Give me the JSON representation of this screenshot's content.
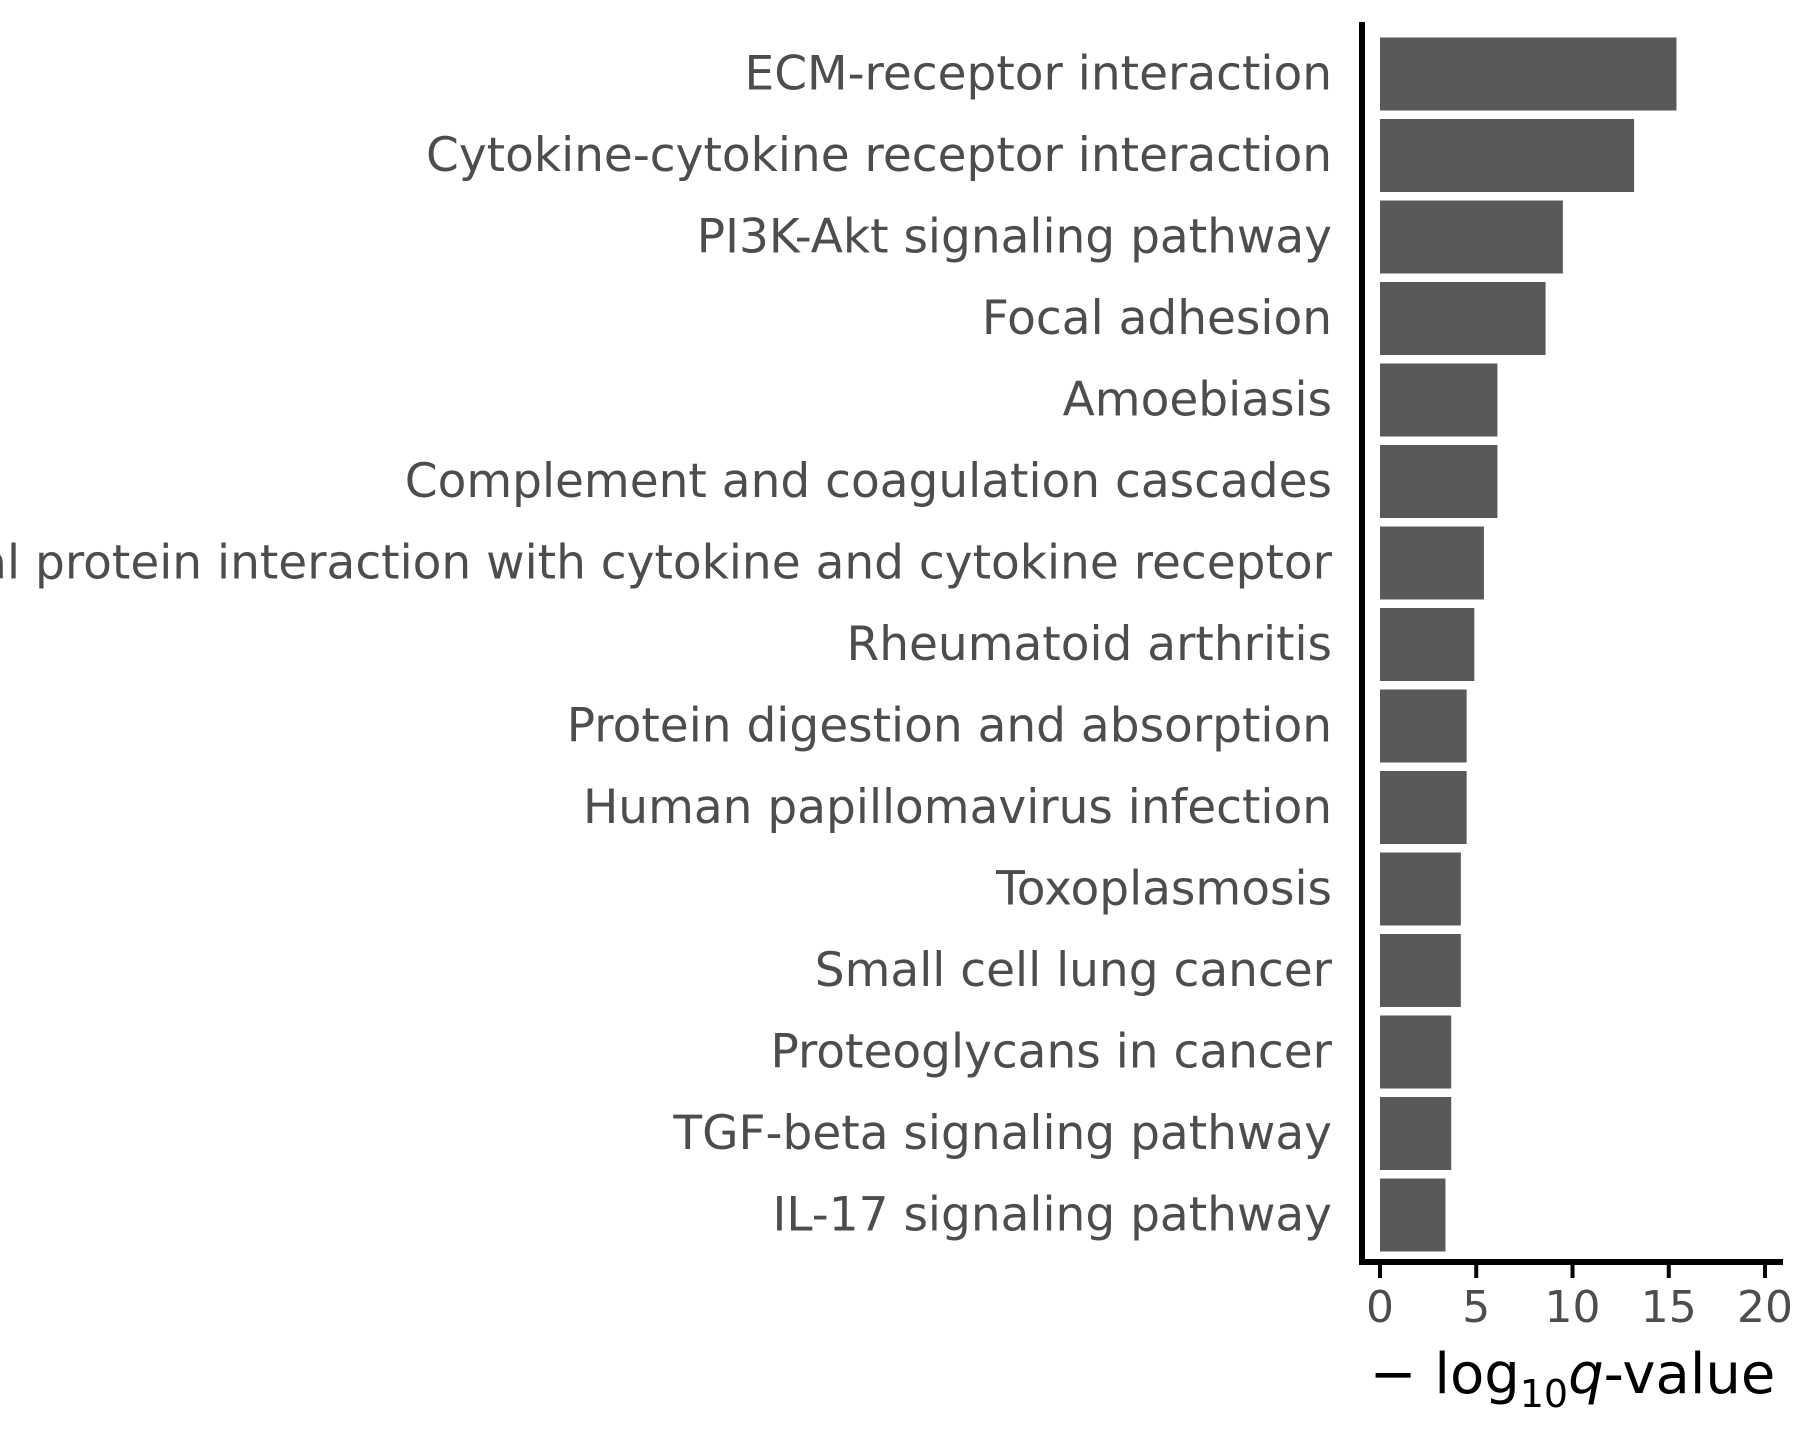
{
  "chart_data": {
    "type": "bar",
    "orientation": "horizontal",
    "categories": [
      "ECM-receptor interaction",
      "Cytokine-cytokine receptor interaction",
      "PI3K-Akt signaling pathway",
      "Focal adhesion",
      "Amoebiasis",
      "Complement and coagulation cascades",
      "Viral protein interaction with cytokine and cytokine receptor",
      "Rheumatoid arthritis",
      "Protein digestion and absorption",
      "Human papillomavirus infection",
      "Toxoplasmosis",
      "Small cell lung cancer",
      "Proteoglycans in cancer",
      "TGF-beta signaling pathway",
      "IL-17 signaling pathway"
    ],
    "values": [
      15.4,
      13.2,
      9.5,
      8.6,
      6.1,
      6.1,
      5.4,
      4.9,
      4.5,
      4.5,
      4.2,
      4.2,
      3.7,
      3.7,
      3.4
    ],
    "xlim": [
      0,
      20
    ],
    "xticks": [
      0,
      5,
      10,
      15,
      20
    ],
    "xtick_labels": [
      "0",
      "5",
      "10",
      "15",
      "20"
    ],
    "xlabel": {
      "prefix": "− log",
      "subscript": "10",
      "variable": "q",
      "suffix": "-value"
    },
    "ylabel": "",
    "title": "",
    "grid": false,
    "legend": "none",
    "bar_color": "#595959",
    "axis_color": "#000000",
    "text_color": "#4d4d4d"
  }
}
